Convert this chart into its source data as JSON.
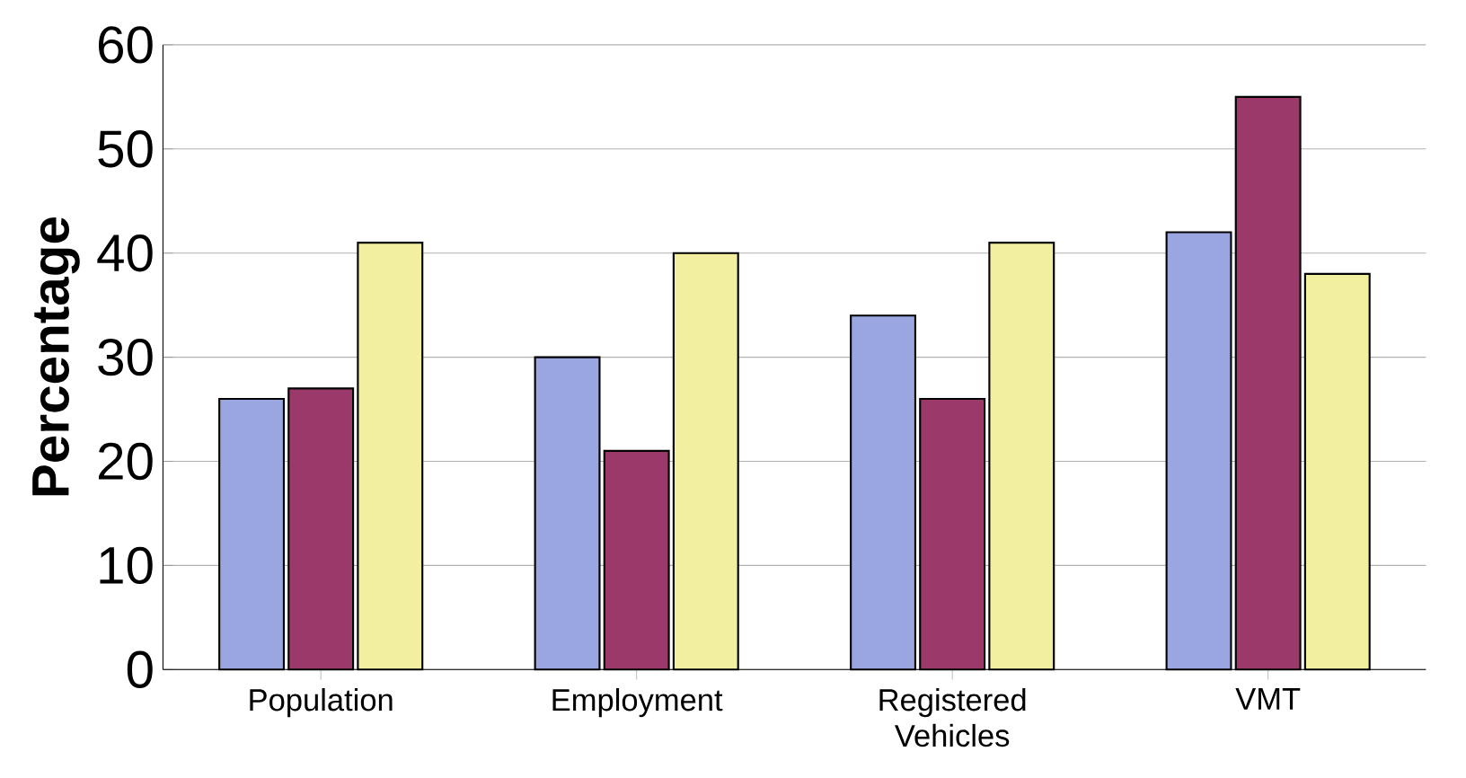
{
  "chart_data": {
    "type": "bar",
    "ylabel": "Percentage",
    "categories": [
      "Population",
      "Employment",
      "Registered Vehicles",
      "VMT"
    ],
    "series": [
      {
        "color": "#9aa6e0",
        "values": [
          26,
          30,
          34,
          42
        ]
      },
      {
        "color": "#9b3a6a",
        "values": [
          27,
          21,
          26,
          55
        ]
      },
      {
        "color": "#f2ef9e",
        "values": [
          41,
          40,
          41,
          38
        ]
      }
    ],
    "ylim": [
      0,
      60
    ],
    "yticks": [
      0,
      10,
      20,
      30,
      40,
      50,
      60
    ],
    "grid": "y"
  }
}
